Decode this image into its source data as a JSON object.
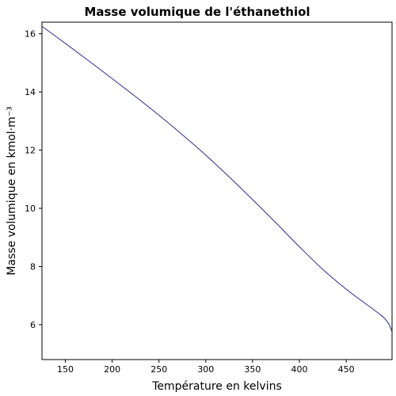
{
  "chart_data": {
    "type": "line",
    "title": "Masse volumique de l'éthanethiol",
    "xlabel": "Température en kelvins",
    "ylabel": "Masse volumique en kmol·m⁻³",
    "xlim": [
      125,
      499
    ],
    "ylim": [
      4.8,
      16.4
    ],
    "xticks": [
      150,
      200,
      250,
      300,
      350,
      400,
      450
    ],
    "yticks": [
      6,
      8,
      10,
      12,
      14,
      16
    ],
    "grid": false,
    "line_color": "#2b2b8c",
    "series": [
      {
        "x": [
          125.26,
          150,
          175,
          200,
          225,
          250,
          275,
          300,
          325,
          350,
          375,
          400,
          425,
          450,
          475,
          485,
          490,
          495,
          497,
          499
        ],
        "y": [
          16.25,
          15.67,
          15.07,
          14.46,
          13.84,
          13.2,
          12.53,
          11.83,
          11.08,
          10.3,
          9.5,
          8.68,
          7.9,
          7.22,
          6.62,
          6.38,
          6.25,
          6.05,
          5.92,
          5.75
        ]
      }
    ]
  }
}
